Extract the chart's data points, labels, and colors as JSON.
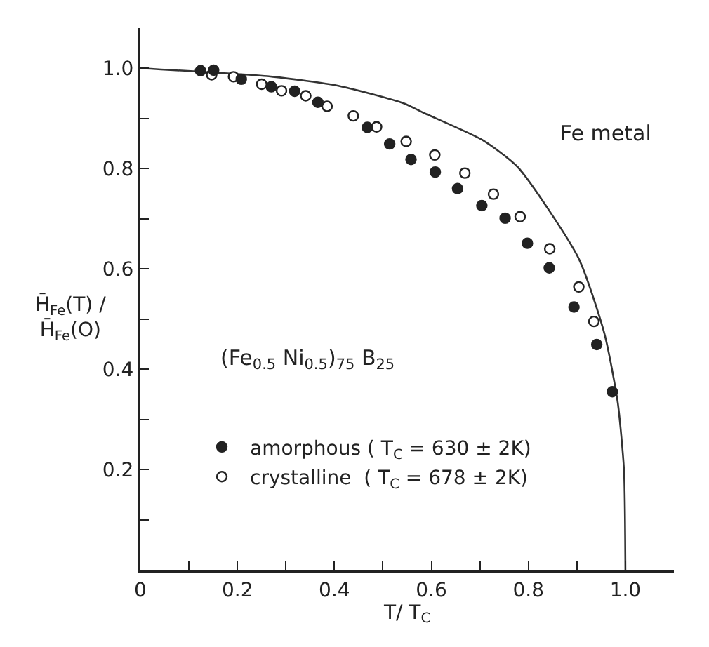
{
  "chart_data": {
    "type": "scatter",
    "xlabel": "T/ T$_{C}$",
    "ylabel": "H̄$_{Fe}$(T) / H̄$_{Fe}$(O)",
    "xlim": [
      0,
      1.1
    ],
    "ylim": [
      0,
      1.08
    ],
    "xticks": [
      {
        "value": 0,
        "label": "0"
      },
      {
        "value": 0.1,
        "label": null
      },
      0.2,
      {
        "value": 0.3,
        "label": null
      },
      0.4,
      {
        "value": 0.5,
        "label": null
      },
      0.6,
      {
        "value": 0.7,
        "label": null
      },
      0.8,
      {
        "value": 0.9,
        "label": null
      },
      {
        "value": 1.0,
        "label": "1.0"
      }
    ],
    "yticks": [
      {
        "value": 0.1,
        "label": null
      },
      0.2,
      {
        "value": 0.3,
        "label": null
      },
      0.4,
      {
        "value": 0.5,
        "label": null
      },
      0.6,
      {
        "value": 0.7,
        "label": null
      },
      0.8,
      {
        "value": 0.9,
        "label": null
      },
      {
        "value": 1.0,
        "label": "1.0"
      }
    ],
    "legend": "bottom left",
    "series": [
      {
        "name": "amorphous ( T$_{C}$ = 630 ± 2K)",
        "color": "#222222",
        "marker": "circle",
        "x": [
          0.124,
          0.151,
          0.208,
          0.27,
          0.318,
          0.366,
          0.468,
          0.514,
          0.558,
          0.608,
          0.654,
          0.704,
          0.752,
          0.798,
          0.843,
          0.894,
          0.941,
          0.973
        ],
        "values": [
          0.995,
          0.996,
          0.978,
          0.963,
          0.954,
          0.932,
          0.882,
          0.849,
          0.818,
          0.793,
          0.76,
          0.726,
          0.701,
          0.651,
          0.602,
          0.524,
          0.449,
          0.355
        ]
      },
      {
        "name": "crystalline  ( T$_{C}$ = 678 ± 2K)",
        "color": "#ffffff",
        "marker": "circle",
        "x": [
          0.147,
          0.192,
          0.25,
          0.291,
          0.341,
          0.385,
          0.439,
          0.487,
          0.548,
          0.607,
          0.669,
          0.728,
          0.783,
          0.844,
          0.904,
          0.935
        ],
        "values": [
          0.987,
          0.983,
          0.968,
          0.955,
          0.945,
          0.924,
          0.905,
          0.883,
          0.854,
          0.827,
          0.791,
          0.749,
          0.704,
          0.64,
          0.564,
          0.495
        ]
      },
      {
        "type": "line",
        "color": "#333333",
        "marker": "none",
        "x": [
          0,
          0.273,
          0.408,
          0.543,
          0.584,
          0.705,
          0.778,
          0.903,
          0.957,
          0.984,
          0.997,
          1.0
        ],
        "values": [
          1.0,
          0.983,
          0.965,
          0.93,
          0.911,
          0.857,
          0.803,
          0.622,
          0.47,
          0.335,
          0.2,
          0.0
        ]
      }
    ],
    "annotations": [
      "Fe metal",
      "(Fe$_{0.5}$ Ni$_{0.5}$)$_{75}$ B$_{25}$"
    ]
  }
}
